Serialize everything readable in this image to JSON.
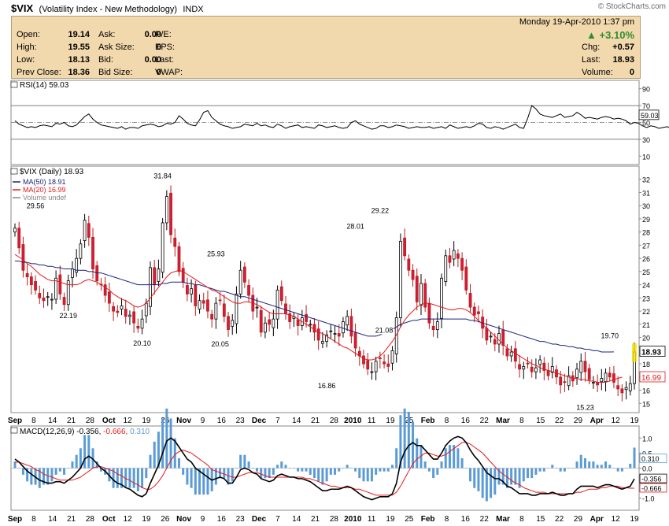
{
  "header": {
    "symbol": "$VIX",
    "description": "(Volatility Index - New Methodology)",
    "exchange": "INDX",
    "brand": "© StockCharts.com",
    "datetime": "Monday  19-Apr-2010  1:37 pm"
  },
  "quote": {
    "left": [
      {
        "label": "Open:",
        "value": "19.14"
      },
      {
        "label": "High:",
        "value": "19.55"
      },
      {
        "label": "Low:",
        "value": "18.13"
      },
      {
        "label": "Prev Close:",
        "value": "18.36"
      }
    ],
    "mid": [
      {
        "label": "Ask:",
        "value": "0.00"
      },
      {
        "label": "Ask Size:",
        "value": "0"
      },
      {
        "label": "Bid:",
        "value": "0.00"
      },
      {
        "label": "Bid Size:",
        "value": "0"
      }
    ],
    "right": [
      {
        "label": "P/E:",
        "value": ""
      },
      {
        "label": "EPS:",
        "value": ""
      },
      {
        "label": "Last:",
        "value": ""
      },
      {
        "label": "VWAP:",
        "value": ""
      }
    ],
    "change_pct": "+3.10%",
    "far": [
      {
        "label": "Chg:",
        "value": "+0.57"
      },
      {
        "label": "Last:",
        "value": "18.93"
      },
      {
        "label": "Volume:",
        "value": "0"
      }
    ],
    "up_color": "#2e8b2e"
  },
  "chart_data": [
    {
      "type": "line",
      "panel": "RSI",
      "legend": "RSI(14) 59.03",
      "last_label": "59.03",
      "y_ticks": [
        90,
        70,
        50,
        30,
        10
      ],
      "ylim": [
        0,
        100
      ],
      "reference_lines": [
        70,
        30
      ],
      "values": [
        52,
        48,
        46,
        44,
        45,
        44,
        46,
        47,
        46,
        45,
        49,
        48,
        50,
        46,
        45,
        47,
        52,
        57,
        60,
        54,
        50,
        47,
        46,
        45,
        44,
        43,
        45,
        42,
        44,
        44,
        43,
        46,
        47,
        48,
        47,
        45,
        46,
        49,
        48,
        50,
        58,
        54,
        49,
        47,
        46,
        53,
        62,
        64,
        56,
        52,
        48,
        46,
        45,
        43,
        44,
        45,
        48,
        47,
        46,
        49,
        46,
        47,
        45,
        44,
        48,
        46,
        43,
        45,
        46,
        47,
        44,
        45,
        44,
        43,
        47,
        46,
        44,
        45,
        46,
        44,
        43,
        44,
        50,
        52,
        48,
        46,
        44,
        42,
        43,
        46,
        46,
        44,
        45,
        47,
        46,
        45,
        43,
        44,
        45,
        44,
        44,
        45,
        43,
        44,
        45,
        43,
        47,
        45,
        43,
        44,
        45,
        44,
        46,
        49,
        48,
        44,
        43,
        45,
        44,
        42,
        44,
        46,
        48,
        44,
        43,
        55,
        70,
        66,
        60,
        58,
        57,
        56,
        58,
        60,
        56,
        57,
        58,
        62,
        59,
        55,
        56,
        55,
        54,
        56,
        57,
        56,
        54,
        55,
        54,
        52,
        48,
        50,
        49,
        46,
        44,
        46,
        45,
        43,
        44,
        45,
        43,
        41,
        42,
        40,
        44,
        46,
        44,
        43,
        45,
        42,
        43,
        45,
        46,
        44,
        42,
        43,
        45,
        44,
        43,
        45,
        42,
        41,
        43,
        44,
        45,
        46,
        49,
        52,
        49,
        47,
        46,
        48,
        46,
        45,
        43,
        44,
        46,
        45,
        43,
        57,
        62,
        59.03
      ]
    },
    {
      "type": "candlestick",
      "panel": "Price",
      "legend": "$VIX (Daily) 18.93",
      "series": [
        {
          "name": "MA(50) 18.91",
          "color": "#1a237e",
          "last": 18.91
        },
        {
          "name": "MA(20) 16.99",
          "color": "#e31a1c",
          "last": 16.99
        },
        {
          "name": "Volume undef",
          "color": "#888888"
        }
      ],
      "last_label": "18.93",
      "ma20_label": "16.99",
      "y_ticks": [
        32,
        31,
        30,
        29,
        28,
        27,
        26,
        25,
        24,
        23,
        22,
        21,
        20,
        19,
        18,
        17,
        16,
        15
      ],
      "ylim": [
        14.3,
        33
      ],
      "x_labels": [
        "Sep",
        "8",
        "14",
        "21",
        "28",
        "Oct",
        "12",
        "19",
        "26",
        "Nov",
        "9",
        "16",
        "23",
        "Dec",
        "7",
        "14",
        "21",
        "28",
        "2010",
        "11",
        "19",
        "25",
        "Feb",
        "8",
        "16",
        "22",
        "Mar",
        "8",
        "15",
        "22",
        "29",
        "Apr",
        "12",
        "19"
      ],
      "annotations": [
        "29.56",
        "22.19",
        "31.84",
        "20.10",
        "25.93",
        "20.05",
        "28.01",
        "16.86",
        "29.22",
        "21.08",
        "19.70",
        "15.23"
      ],
      "close": [
        28.3,
        26.8,
        25.1,
        24.6,
        24.0,
        23.6,
        23.0,
        22.8,
        23.1,
        22.9,
        24.5,
        23.3,
        22.5,
        24.3,
        25.2,
        26.0,
        27.1,
        28.9,
        27.6,
        25.2,
        24.3,
        24.0,
        23.2,
        22.6,
        22.0,
        21.9,
        22.4,
        21.6,
        21.7,
        21.1,
        20.7,
        21.4,
        22.6,
        25.3,
        24.0,
        25.2,
        28.7,
        30.7,
        27.8,
        26.9,
        25.0,
        24.2,
        23.3,
        23.7,
        22.4,
        22.8,
        22.6,
        22.0,
        21.4,
        22.6,
        22.8,
        21.6,
        20.6,
        21.3,
        23.3,
        25.1,
        24.2,
        23.2,
        22.0,
        22.3,
        20.4,
        21.1,
        21.0,
        21.4,
        23.6,
        22.8,
        21.8,
        21.2,
        21.6,
        20.9,
        21.5,
        21.2,
        21.0,
        20.4,
        19.8,
        19.7,
        20.2,
        20.5,
        20.3,
        20.1,
        21.2,
        21.6,
        20.1,
        19.2,
        18.6,
        18.0,
        17.6,
        17.4,
        18.2,
        18.4,
        18.0,
        17.8,
        19.0,
        21.5,
        27.3,
        26.2,
        25.1,
        24.4,
        22.7,
        24.1,
        22.3,
        21.1,
        20.6,
        21.2,
        24.5,
        26.2,
        25.7,
        26.6,
        26.0,
        25.1,
        23.6,
        22.3,
        21.7,
        21.8,
        20.7,
        19.8,
        20.1,
        19.5,
        20.3,
        19.4,
        18.6,
        18.9,
        18.2,
        17.6,
        17.8,
        18.0,
        17.4,
        17.7,
        18.3,
        17.5,
        17.1,
        17.8,
        17.0,
        16.4,
        16.6,
        17.1,
        16.7,
        17.6,
        18.2,
        17.4,
        16.8,
        16.6,
        16.4,
        16.9,
        17.3,
        17.0,
        16.6,
        16.1,
        15.8,
        16.2,
        16.5,
        18.9
      ],
      "ma20": [
        26.3,
        26.1,
        25.9,
        25.6,
        25.4,
        25.1,
        24.8,
        24.6,
        24.4,
        24.3,
        24.3,
        24.2,
        24.1,
        24.0,
        24.0,
        24.0,
        24.1,
        24.3,
        24.4,
        24.3,
        24.2,
        24.0,
        23.8,
        23.6,
        23.3,
        23.1,
        22.9,
        22.8,
        22.6,
        22.4,
        22.3,
        22.4,
        22.6,
        23.0,
        23.4,
        23.8,
        24.2,
        24.6,
        24.9,
        25.0,
        25.1,
        25.0,
        24.8,
        24.6,
        24.4,
        24.2,
        24.0,
        23.8,
        23.6,
        23.5,
        23.3,
        23.1,
        22.9,
        22.7,
        22.6,
        22.6,
        22.7,
        22.7,
        22.6,
        22.5,
        22.3,
        22.1,
        21.9,
        21.8,
        21.8,
        21.8,
        21.8,
        21.7,
        21.6,
        21.4,
        21.2,
        21.0,
        20.8,
        20.6,
        20.4,
        20.3,
        20.1,
        19.9,
        19.7,
        19.5,
        19.3,
        19.2,
        19.0,
        18.8,
        18.6,
        18.4,
        18.3,
        18.3,
        18.4,
        18.6,
        18.9,
        19.3,
        19.7,
        20.2,
        20.8,
        21.3,
        21.7,
        22.0,
        22.3,
        22.5,
        22.6,
        22.6,
        22.5,
        22.4,
        22.3,
        22.2,
        22.1,
        22.1,
        22.2,
        22.2,
        22.1,
        21.9,
        21.6,
        21.3,
        21.0,
        20.7,
        20.4,
        20.1,
        19.8,
        19.5,
        19.2,
        19.0,
        18.8,
        18.6,
        18.4,
        18.2,
        18.0,
        17.9,
        17.7,
        17.6,
        17.5,
        17.4,
        17.3,
        17.2,
        17.1,
        17.0,
        16.9,
        16.9,
        16.8,
        16.8,
        16.7,
        16.7,
        16.6,
        16.6,
        16.6,
        16.7,
        16.8,
        16.9,
        16.99
      ],
      "ma50": [
        25.8,
        25.8,
        25.7,
        25.7,
        25.6,
        25.6,
        25.5,
        25.5,
        25.4,
        25.4,
        25.3,
        25.3,
        25.2,
        25.2,
        25.2,
        25.1,
        25.1,
        25.1,
        25.0,
        25.0,
        24.9,
        24.9,
        24.8,
        24.7,
        24.6,
        24.5,
        24.4,
        24.3,
        24.2,
        24.1,
        24.0,
        24.0,
        24.0,
        24.0,
        24.0,
        24.0,
        24.1,
        24.1,
        24.2,
        24.2,
        24.2,
        24.2,
        24.1,
        24.1,
        24.0,
        24.0,
        23.9,
        23.8,
        23.7,
        23.6,
        23.5,
        23.5,
        23.4,
        23.3,
        23.2,
        23.1,
        23.1,
        23.0,
        22.9,
        22.8,
        22.7,
        22.6,
        22.5,
        22.4,
        22.3,
        22.2,
        22.1,
        22.0,
        21.9,
        21.8,
        21.7,
        21.6,
        21.5,
        21.4,
        21.3,
        21.2,
        21.1,
        21.0,
        20.9,
        20.8,
        20.7,
        20.6,
        20.5,
        20.4,
        20.3,
        20.2,
        20.1,
        20.1,
        20.1,
        20.2,
        20.3,
        20.4,
        20.6,
        20.8,
        21.0,
        21.1,
        21.2,
        21.3,
        21.3,
        21.4,
        21.4,
        21.4,
        21.4,
        21.4,
        21.4,
        21.4,
        21.4,
        21.4,
        21.4,
        21.4,
        21.4,
        21.3,
        21.3,
        21.2,
        21.1,
        21.0,
        20.9,
        20.8,
        20.7,
        20.6,
        20.5,
        20.4,
        20.3,
        20.2,
        20.1,
        20.0,
        19.9,
        19.8,
        19.7,
        19.7,
        19.6,
        19.5,
        19.5,
        19.4,
        19.4,
        19.3,
        19.3,
        19.2,
        19.2,
        19.1,
        19.1,
        19.0,
        19.0,
        18.9,
        18.9,
        18.9,
        18.91
      ]
    },
    {
      "type": "line",
      "panel": "MACD",
      "legend": "MACD(12,26,9)",
      "legend_values": [
        "-0.356",
        "-0.666",
        "0.310"
      ],
      "series": [
        {
          "name": "MACD",
          "color": "#000000"
        },
        {
          "name": "Signal",
          "color": "#e31a1c"
        },
        {
          "name": "Histogram",
          "color": "#5b9bd5"
        }
      ],
      "y_ticks": [
        1.0,
        0.5,
        0.0,
        -0.5,
        -1.0
      ],
      "ylim": [
        -1.4,
        1.4
      ],
      "labels": [
        "0.310",
        "-0.356",
        "-0.666"
      ],
      "macd": [
        0.3,
        0.2,
        0.05,
        -0.1,
        -0.2,
        -0.3,
        -0.4,
        -0.45,
        -0.5,
        -0.5,
        -0.45,
        -0.45,
        -0.5,
        -0.4,
        -0.3,
        -0.15,
        0.0,
        0.3,
        0.4,
        0.3,
        0.15,
        0.0,
        -0.1,
        -0.25,
        -0.4,
        -0.5,
        -0.55,
        -0.65,
        -0.7,
        -0.8,
        -0.9,
        -0.95,
        -0.85,
        -0.5,
        -0.2,
        0.1,
        0.5,
        0.9,
        1.0,
        0.9,
        0.7,
        0.5,
        0.3,
        0.2,
        0.0,
        -0.1,
        -0.2,
        -0.3,
        -0.4,
        -0.35,
        -0.3,
        -0.35,
        -0.5,
        -0.5,
        -0.3,
        -0.05,
        0.0,
        -0.05,
        -0.15,
        -0.2,
        -0.35,
        -0.4,
        -0.45,
        -0.4,
        -0.25,
        -0.2,
        -0.25,
        -0.3,
        -0.3,
        -0.35,
        -0.35,
        -0.4,
        -0.45,
        -0.55,
        -0.65,
        -0.75,
        -0.75,
        -0.7,
        -0.7,
        -0.7,
        -0.65,
        -0.6,
        -0.65,
        -0.75,
        -0.85,
        -0.95,
        -1.0,
        -1.05,
        -1.0,
        -0.95,
        -0.95,
        -0.95,
        -0.85,
        -0.5,
        0.2,
        0.55,
        0.75,
        0.85,
        0.75,
        0.75,
        0.6,
        0.45,
        0.3,
        0.3,
        0.5,
        0.75,
        0.9,
        1.0,
        1.05,
        1.0,
        0.85,
        0.6,
        0.4,
        0.25,
        0.05,
        -0.15,
        -0.25,
        -0.35,
        -0.35,
        -0.45,
        -0.6,
        -0.65,
        -0.75,
        -0.85,
        -0.85,
        -0.85,
        -0.9,
        -0.9,
        -0.85,
        -0.85,
        -0.85,
        -0.8,
        -0.85,
        -0.9,
        -0.9,
        -0.85,
        -0.85,
        -0.7,
        -0.6,
        -0.6,
        -0.6,
        -0.6,
        -0.65,
        -0.6,
        -0.55,
        -0.55,
        -0.6,
        -0.65,
        -0.7,
        -0.65,
        -0.6,
        -0.356
      ],
      "signal": [
        0.2,
        0.2,
        0.15,
        0.1,
        0.05,
        -0.05,
        -0.1,
        -0.2,
        -0.25,
        -0.3,
        -0.35,
        -0.4,
        -0.4,
        -0.4,
        -0.4,
        -0.35,
        -0.3,
        -0.2,
        -0.1,
        0.0,
        0.05,
        0.05,
        0.0,
        -0.05,
        -0.1,
        -0.2,
        -0.25,
        -0.35,
        -0.4,
        -0.5,
        -0.55,
        -0.65,
        -0.7,
        -0.7,
        -0.6,
        -0.45,
        -0.25,
        0.0,
        0.25,
        0.45,
        0.55,
        0.6,
        0.55,
        0.5,
        0.4,
        0.3,
        0.2,
        0.1,
        -0.05,
        -0.1,
        -0.15,
        -0.2,
        -0.25,
        -0.3,
        -0.3,
        -0.25,
        -0.2,
        -0.15,
        -0.15,
        -0.15,
        -0.2,
        -0.25,
        -0.3,
        -0.3,
        -0.3,
        -0.3,
        -0.3,
        -0.3,
        -0.3,
        -0.3,
        -0.3,
        -0.35,
        -0.35,
        -0.4,
        -0.45,
        -0.5,
        -0.55,
        -0.6,
        -0.6,
        -0.65,
        -0.65,
        -0.65,
        -0.65,
        -0.7,
        -0.7,
        -0.75,
        -0.8,
        -0.85,
        -0.9,
        -0.9,
        -0.9,
        -0.9,
        -0.9,
        -0.8,
        -0.6,
        -0.35,
        -0.1,
        0.15,
        0.3,
        0.4,
        0.5,
        0.5,
        0.45,
        0.4,
        0.4,
        0.45,
        0.55,
        0.65,
        0.75,
        0.85,
        0.85,
        0.8,
        0.7,
        0.6,
        0.5,
        0.35,
        0.2,
        0.05,
        -0.1,
        -0.2,
        -0.3,
        -0.4,
        -0.5,
        -0.55,
        -0.65,
        -0.7,
        -0.75,
        -0.8,
        -0.8,
        -0.8,
        -0.85,
        -0.85,
        -0.85,
        -0.85,
        -0.85,
        -0.85,
        -0.85,
        -0.8,
        -0.8,
        -0.75,
        -0.7,
        -0.7,
        -0.7,
        -0.65,
        -0.65,
        -0.6,
        -0.6,
        -0.6,
        -0.65,
        -0.65,
        -0.666,
        -0.666
      ]
    }
  ]
}
